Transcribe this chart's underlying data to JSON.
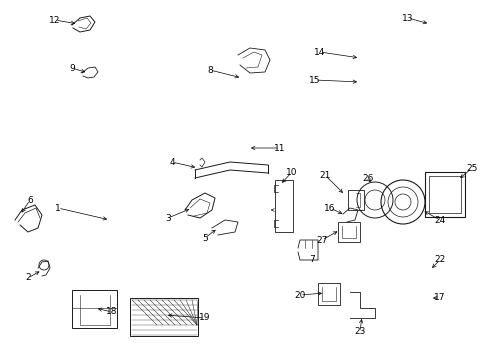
{
  "bg_color": "#ffffff",
  "line_color": "#1a1a1a",
  "label_color": "#000000",
  "label_fontsize": 6.5,
  "fig_width": 4.89,
  "fig_height": 3.6,
  "dpi": 100
}
